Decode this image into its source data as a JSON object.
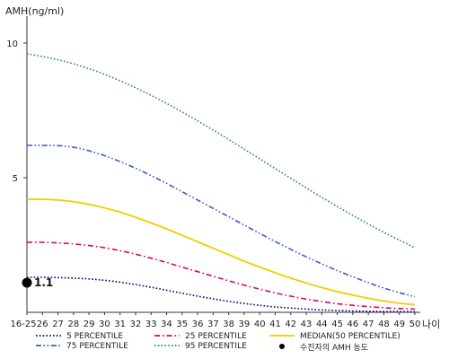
{
  "chart_data": {
    "type": "line",
    "ylabel": "AMH(ng/ml)",
    "xlabel": "나이",
    "x": [
      "16-25",
      "26",
      "27",
      "28",
      "29",
      "30",
      "31",
      "32",
      "33",
      "34",
      "35",
      "36",
      "37",
      "38",
      "39",
      "40",
      "41",
      "42",
      "43",
      "44",
      "45",
      "46",
      "47",
      "48",
      "49",
      "50"
    ],
    "ylim": [
      0,
      11
    ],
    "yticks": [
      5,
      10
    ],
    "grid": false,
    "series": [
      {
        "name": "5 PERCENTILE",
        "color": "#000080",
        "dash": "dotted",
        "values": [
          1.3,
          1.3,
          1.29,
          1.27,
          1.24,
          1.19,
          1.12,
          1.03,
          0.93,
          0.82,
          0.71,
          0.6,
          0.5,
          0.41,
          0.33,
          0.26,
          0.2,
          0.16,
          0.12,
          0.09,
          0.07,
          0.05,
          0.04,
          0.03,
          0.03,
          0.02
        ]
      },
      {
        "name": "25 PERCENTILE",
        "color": "#e0006e",
        "dash": "dashdot",
        "values": [
          2.6,
          2.6,
          2.58,
          2.54,
          2.48,
          2.4,
          2.29,
          2.16,
          2.01,
          1.85,
          1.68,
          1.51,
          1.34,
          1.17,
          1.01,
          0.86,
          0.72,
          0.6,
          0.49,
          0.4,
          0.32,
          0.26,
          0.21,
          0.17,
          0.14,
          0.12
        ]
      },
      {
        "name": "MEDIAN(50 PERCENTILE)",
        "color": "#f2cd00",
        "dash": "solid",
        "values": [
          4.2,
          4.2,
          4.17,
          4.11,
          4.01,
          3.88,
          3.72,
          3.53,
          3.32,
          3.1,
          2.86,
          2.62,
          2.38,
          2.14,
          1.9,
          1.68,
          1.47,
          1.27,
          1.09,
          0.92,
          0.77,
          0.64,
          0.52,
          0.42,
          0.34,
          0.28
        ]
      },
      {
        "name": "75 PERCENTILE",
        "color": "#3a5fc8",
        "dash": "dashdotdot",
        "values": [
          6.2,
          6.2,
          6.19,
          6.13,
          6.0,
          5.82,
          5.6,
          5.35,
          5.08,
          4.79,
          4.48,
          4.17,
          3.86,
          3.55,
          3.24,
          2.93,
          2.63,
          2.34,
          2.06,
          1.8,
          1.55,
          1.32,
          1.1,
          0.9,
          0.73,
          0.58
        ]
      },
      {
        "name": "95 PERCENTILE",
        "color": "#2e8b57",
        "dash": "dotted",
        "values": [
          9.6,
          9.5,
          9.38,
          9.23,
          9.05,
          8.84,
          8.6,
          8.34,
          8.06,
          7.76,
          7.44,
          7.11,
          6.77,
          6.42,
          6.06,
          5.7,
          5.34,
          4.98,
          4.62,
          4.27,
          3.93,
          3.6,
          3.28,
          2.97,
          2.68,
          2.4
        ]
      }
    ],
    "marker": {
      "name": "수진자의 AMH 농도",
      "x": "16-25",
      "y": 1.1,
      "label": "1.1"
    },
    "legend_position": "bottom"
  }
}
